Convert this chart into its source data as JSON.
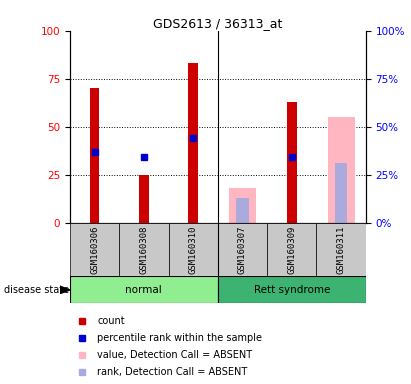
{
  "title": "GDS2613 / 36313_at",
  "samples": [
    "GSM160306",
    "GSM160308",
    "GSM160310",
    "GSM160307",
    "GSM160309",
    "GSM160311"
  ],
  "groups": [
    "normal",
    "normal",
    "normal",
    "Rett syndrome",
    "Rett syndrome",
    "Rett syndrome"
  ],
  "bar_width": 0.55,
  "count_values": [
    70,
    25,
    83,
    0,
    63,
    0
  ],
  "count_color": "#CC0000",
  "percentile_values": [
    37,
    34,
    44,
    0,
    34,
    0
  ],
  "percentile_color": "#0000CC",
  "absent_value_values": [
    0,
    0,
    0,
    18,
    0,
    55
  ],
  "absent_value_color": "#FFB6C1",
  "absent_rank_values": [
    0,
    0,
    0,
    13,
    0,
    31
  ],
  "absent_rank_color": "#AAAADD",
  "ylim": [
    0,
    100
  ],
  "yticks": [
    0,
    25,
    50,
    75,
    100
  ],
  "disease_state_label": "disease state",
  "normal_color": "#90EE90",
  "rett_color": "#3CB371",
  "gray_color": "#C8C8C8",
  "legend_items": [
    {
      "label": "count",
      "color": "#CC0000",
      "marker": "s"
    },
    {
      "label": "percentile rank within the sample",
      "color": "#0000CC",
      "marker": "s"
    },
    {
      "label": "value, Detection Call = ABSENT",
      "color": "#FFB6C1",
      "marker": "s"
    },
    {
      "label": "rank, Detection Call = ABSENT",
      "color": "#AAAADD",
      "marker": "s"
    }
  ]
}
